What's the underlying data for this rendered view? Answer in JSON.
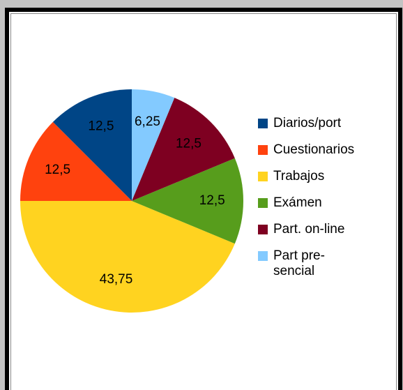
{
  "chart_data": {
    "type": "pie",
    "categories": [
      "Diarios/port",
      "Cuestionarios",
      "Trabajos",
      "Exámen",
      "Part. on-line",
      "Part pre-sencial"
    ],
    "values": [
      12.5,
      12.5,
      43.75,
      12.5,
      12.5,
      6.25
    ],
    "value_labels": [
      "12,5",
      "12,5",
      "43,75",
      "12,5",
      "12,5",
      "6,25"
    ],
    "colors": [
      "#004586",
      "#ff420e",
      "#ffd320",
      "#579d1c",
      "#7e0021",
      "#83caff"
    ],
    "direction": "counterclockwise",
    "start": "top",
    "legend": "right"
  }
}
